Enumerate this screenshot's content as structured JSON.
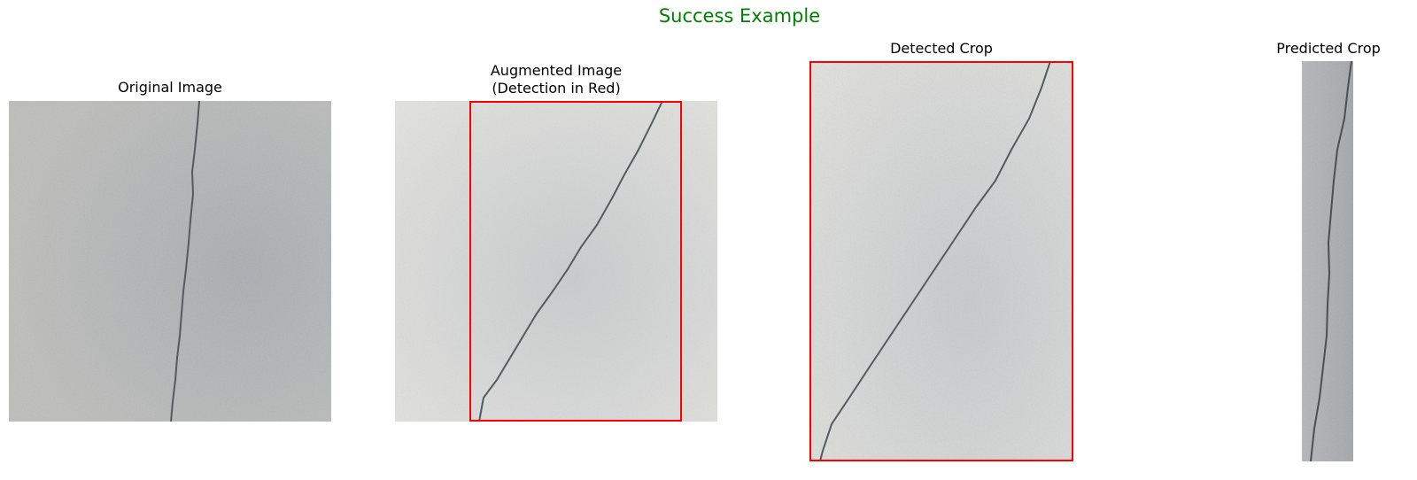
{
  "figure": {
    "title": "Success Example",
    "title_color": "#008000",
    "box_color": "#ff0000"
  },
  "panels": [
    {
      "title": "Original Image"
    },
    {
      "title": "Augmented Image\n(Detection in Red)"
    },
    {
      "title": "Detected Crop"
    },
    {
      "title": "Predicted Crop"
    }
  ]
}
